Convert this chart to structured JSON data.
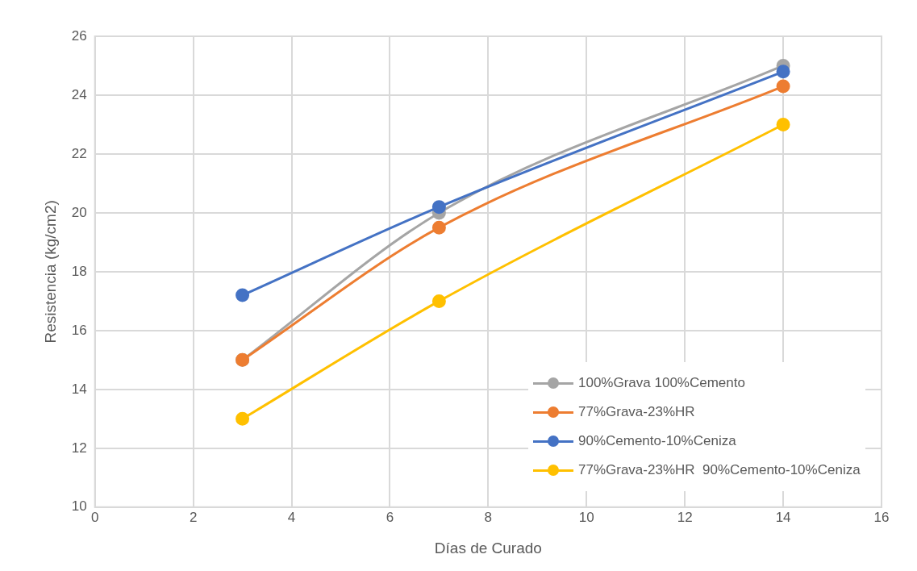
{
  "chart_data": {
    "type": "line",
    "xlabel": "Días de Curado",
    "ylabel": "Resistencia (kg/cm2)",
    "x": [
      3,
      7,
      14
    ],
    "series": [
      {
        "name": "100%Grava 100%Cemento",
        "color": "#a5a5a5",
        "values": [
          15.0,
          20.0,
          25.0
        ]
      },
      {
        "name": "77%Grava-23%HR",
        "color": "#ed7d31",
        "values": [
          15.0,
          19.5,
          24.3
        ]
      },
      {
        "name": "90%Cemento-10%Ceniza",
        "color": "#4472c4",
        "values": [
          17.2,
          20.2,
          24.8
        ]
      },
      {
        "name": "77%Grava-23%HR  90%Cemento-10%Ceniza",
        "color": "#ffc000",
        "values": [
          13.0,
          17.0,
          23.0
        ]
      }
    ],
    "xlim": [
      0,
      16
    ],
    "xticks": [
      0,
      2,
      4,
      6,
      8,
      10,
      12,
      14,
      16
    ],
    "ylim": [
      10,
      26
    ],
    "yticks": [
      10,
      12,
      14,
      16,
      18,
      20,
      22,
      24,
      26
    ],
    "grid": true,
    "legend": "bottom right",
    "marker": "circle",
    "line_style": "solid"
  }
}
